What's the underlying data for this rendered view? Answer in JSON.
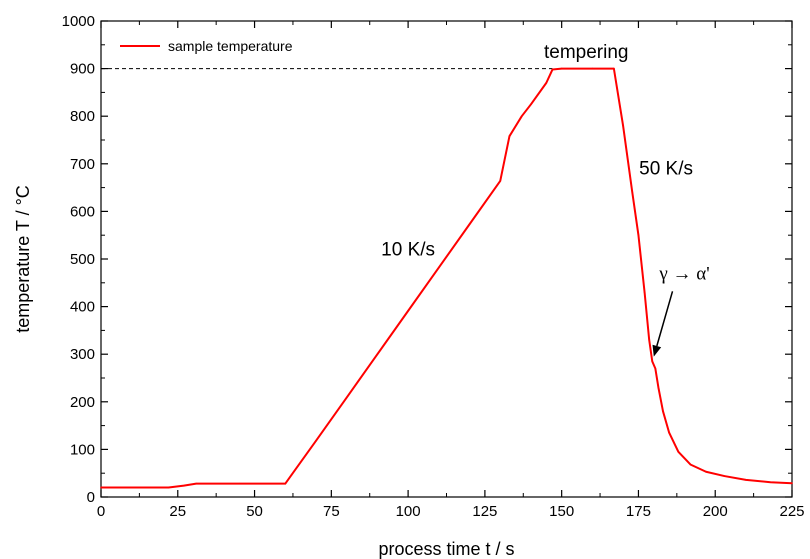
{
  "chart_data": {
    "type": "line",
    "xlabel": "process time t / s",
    "ylabel": "temperature T / °C",
    "xlim": [
      0,
      225
    ],
    "ylim": [
      0,
      1000
    ],
    "xticks": [
      0,
      25,
      50,
      75,
      100,
      125,
      150,
      175,
      200,
      225
    ],
    "yticks": [
      0,
      100,
      200,
      300,
      400,
      500,
      600,
      700,
      800,
      900,
      1000
    ],
    "grid": false,
    "legend": {
      "placement": "top-left",
      "entries": [
        "sample temperature"
      ]
    },
    "series": [
      {
        "name": "sample temperature",
        "color": "#ff0000",
        "points": [
          [
            0,
            20
          ],
          [
            12,
            20
          ],
          [
            22,
            20
          ],
          [
            27,
            24
          ],
          [
            31,
            28
          ],
          [
            45,
            28
          ],
          [
            60,
            28
          ],
          [
            62,
            46
          ],
          [
            70,
            118
          ],
          [
            80,
            209
          ],
          [
            90,
            300
          ],
          [
            100,
            391
          ],
          [
            110,
            482
          ],
          [
            120,
            573
          ],
          [
            130,
            664
          ],
          [
            133,
            758
          ],
          [
            137,
            800
          ],
          [
            140,
            825
          ],
          [
            145,
            870
          ],
          [
            147,
            898
          ],
          [
            150,
            900
          ],
          [
            160,
            900
          ],
          [
            167,
            900
          ],
          [
            170,
            780
          ],
          [
            173,
            640
          ],
          [
            175,
            550
          ],
          [
            177,
            430
          ],
          [
            178.5,
            330
          ],
          [
            179.5,
            285
          ],
          [
            180.5,
            270
          ],
          [
            181.5,
            230
          ],
          [
            183,
            180
          ],
          [
            185,
            135
          ],
          [
            188,
            95
          ],
          [
            192,
            68
          ],
          [
            197,
            53
          ],
          [
            203,
            44
          ],
          [
            210,
            36
          ],
          [
            218,
            31
          ],
          [
            225,
            29
          ]
        ]
      }
    ],
    "reference_line": {
      "y": 900,
      "x_range": [
        0,
        147
      ],
      "style": "dashed",
      "color": "#000000"
    },
    "annotations": [
      {
        "text": "tempering",
        "x": 158,
        "y": 935
      },
      {
        "text": "50 K/s",
        "x": 184,
        "y": 690
      },
      {
        "text": "10 K/s",
        "x": 100,
        "y": 520
      },
      {
        "text": "γ → α'",
        "x": 190,
        "y": 470,
        "arrow_to": [
          180,
          295
        ]
      }
    ]
  }
}
